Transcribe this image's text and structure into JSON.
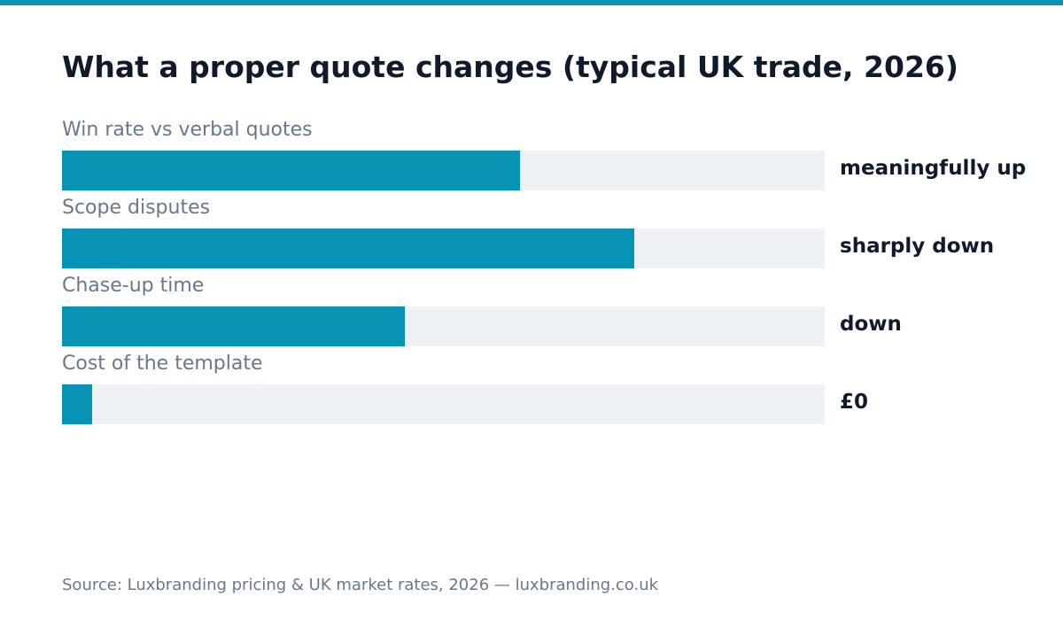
{
  "colors": {
    "accent": "#0892b4",
    "track": "#edf1f5",
    "title": "#0f1b2d",
    "label": "#66788e"
  },
  "chart_data": {
    "type": "bar",
    "orientation": "horizontal",
    "title": "What a proper quote changes (typical UK trade, 2026)",
    "categories": [
      "Win rate vs verbal quotes",
      "Scope disputes",
      "Chase-up time",
      "Cost of the template"
    ],
    "values": [
      0.6,
      0.75,
      0.45,
      0.04
    ],
    "value_labels": [
      "meaningfully up",
      "sharply down",
      "down",
      "£0"
    ],
    "xlim": [
      0,
      1
    ],
    "grid": false,
    "source": "Source: Luxbranding pricing & UK market rates, 2026 — luxbranding.co.uk"
  }
}
